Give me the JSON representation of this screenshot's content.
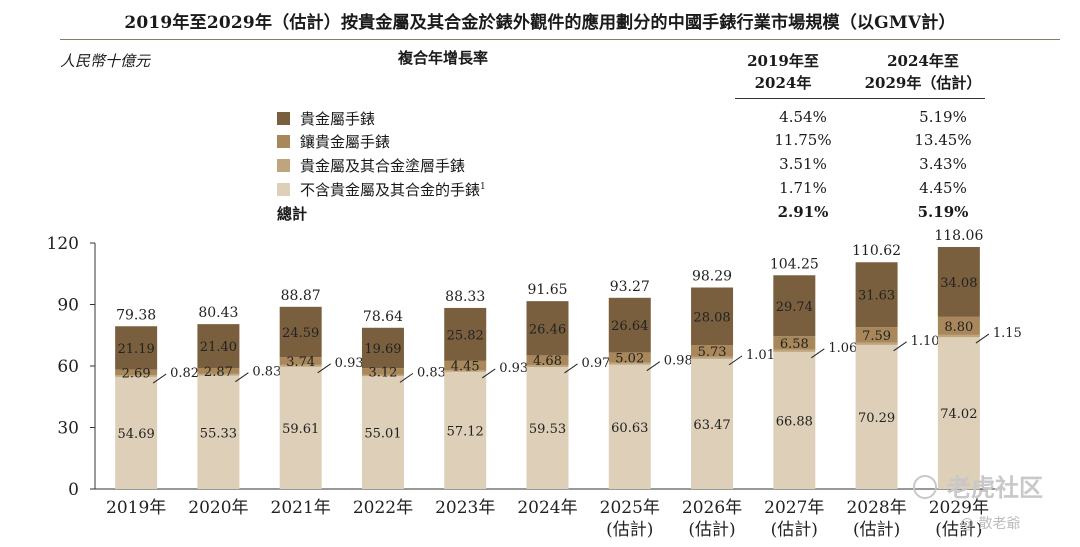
{
  "title": "2019年至2029年（估計）按貴金屬及其合金於錶外觀件的應用劃分的中國手錶行業市場規模（以GMV計）",
  "unit": "人民幣十億元",
  "cagr": {
    "header": "複合年增長率",
    "col1": "2019年至 2024年",
    "col2": "2024年至 2029年（估計）",
    "rows": [
      {
        "label": "貴金屬手錶",
        "v1": "4.54%",
        "v2": "5.19%",
        "color": "#7a5f3e"
      },
      {
        "label": "鑲貴金屬手錶",
        "v1": "11.75%",
        "v2": "13.45%",
        "color": "#a8875a"
      },
      {
        "label": "貴金屬及其合金塗層手錶",
        "v1": "3.51%",
        "v2": "3.43%",
        "color": "#bfa57e"
      },
      {
        "label": "不含貴金屬及其合金的手錶",
        "sup": "1",
        "v1": "1.71%",
        "v2": "4.45%",
        "color": "#ddcfb8"
      }
    ],
    "total": {
      "label": "總計",
      "v1": "2.91%",
      "v2": "5.19%"
    }
  },
  "chart_data": {
    "type": "bar",
    "stacked": true,
    "categories": [
      "2019年",
      "2020年",
      "2021年",
      "2022年",
      "2023年",
      "2024年",
      "2025年 (估計)",
      "2026年 (估計)",
      "2027年 (估計)",
      "2028年 (估計)",
      "2029年 (估計)"
    ],
    "series": [
      {
        "name": "不含貴金屬及其合金的手錶",
        "values": [
          54.69,
          55.33,
          59.61,
          55.01,
          57.12,
          59.53,
          60.63,
          63.47,
          66.88,
          70.29,
          74.02
        ],
        "color": "#ddcfb8"
      },
      {
        "name": "貴金屬及其合金塗層手錶",
        "values": [
          0.82,
          0.83,
          0.93,
          0.83,
          0.93,
          0.97,
          0.98,
          1.01,
          1.06,
          1.1,
          1.15
        ],
        "color": "#bfa57e"
      },
      {
        "name": "鑲貴金屬手錶",
        "values": [
          2.69,
          2.87,
          3.74,
          3.12,
          4.45,
          4.68,
          5.02,
          5.73,
          6.58,
          7.59,
          8.8
        ],
        "color": "#a8875a"
      },
      {
        "name": "貴金屬手錶",
        "values": [
          21.19,
          21.4,
          24.59,
          19.69,
          25.82,
          26.46,
          26.64,
          28.08,
          29.74,
          31.63,
          34.08
        ],
        "color": "#7a5f3e"
      }
    ],
    "totals": [
      79.38,
      80.43,
      88.87,
      78.64,
      88.33,
      91.65,
      93.27,
      98.29,
      104.25,
      110.62,
      118.06
    ],
    "ylim": [
      0,
      120
    ],
    "yticks": [
      0,
      30,
      60,
      90,
      120
    ],
    "title": "",
    "xlabel": "",
    "ylabel": ""
  },
  "watermark": {
    "text": "老虎社区",
    "sub": "@ 散老爺"
  }
}
